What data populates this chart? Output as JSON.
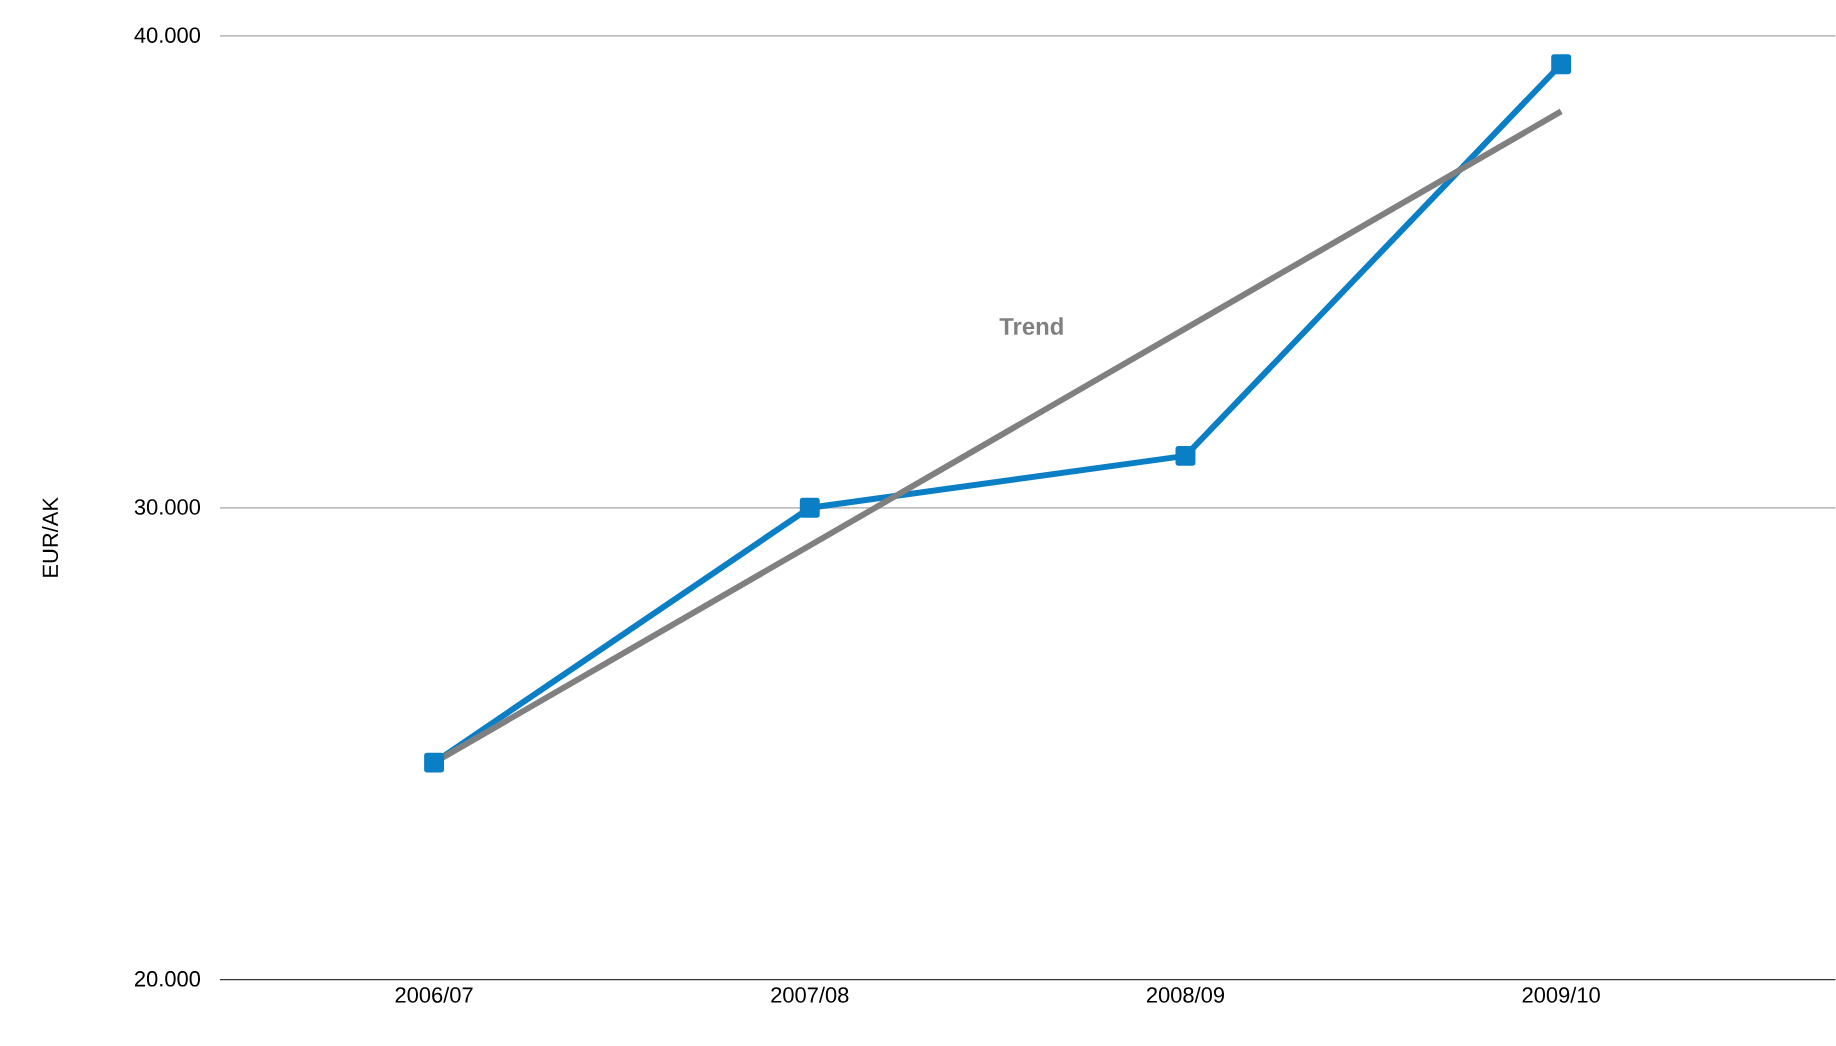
{
  "chart_data": {
    "type": "line",
    "ylabel": "EUR/AK",
    "categories": [
      "2006/07",
      "2007/08",
      "2008/09",
      "2009/10"
    ],
    "series": [
      {
        "color": "#0a7fc6",
        "values": [
          24600,
          30000,
          31100,
          39400
        ],
        "marker": "square",
        "line_style": "solid"
      },
      {
        "name": "Trend",
        "color": "#808080",
        "x": [
          "2006/07",
          "2009/10"
        ],
        "values": [
          24600,
          38400
        ],
        "marker": "none",
        "line_style": "solid"
      }
    ],
    "ylim": [
      20000,
      40000
    ],
    "yticks": [
      {
        "value": 20000,
        "label": "20.000"
      },
      {
        "value": 30000,
        "label": "30.000"
      },
      {
        "value": 40000,
        "label": "40.000"
      }
    ],
    "grid": "y",
    "legend": false
  }
}
